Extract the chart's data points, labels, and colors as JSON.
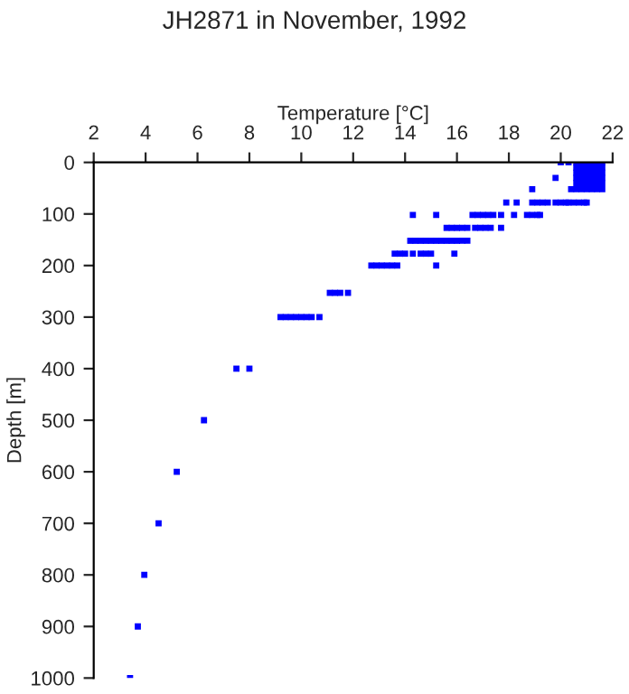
{
  "chart_data": {
    "type": "scatter",
    "title": "JH2871 in November, 1992",
    "xlabel": "Temperature [°C]",
    "ylabel": "Depth [m]",
    "xlim": [
      2,
      22
    ],
    "xticks": [
      2,
      4,
      6,
      8,
      10,
      12,
      14,
      16,
      18,
      20,
      22
    ],
    "ylim": [
      1000,
      0
    ],
    "yticks": [
      0,
      100,
      200,
      300,
      400,
      500,
      600,
      700,
      800,
      900,
      1000
    ],
    "marker": "square",
    "grid": false,
    "series": [
      {
        "color": "#0000ff",
        "x": [
          20.0,
          20.3,
          20.6,
          20.8,
          21.0,
          21.2,
          21.4,
          21.6,
          20.6,
          20.8,
          21.0,
          21.2,
          21.4,
          21.6,
          20.6,
          20.8,
          21.0,
          21.2,
          21.4,
          21.6,
          19.8,
          20.6,
          20.8,
          21.0,
          21.2,
          21.4,
          21.6,
          20.6,
          20.8,
          21.0,
          21.2,
          21.4,
          21.6,
          18.9,
          20.4,
          20.6,
          20.8,
          21.0,
          21.2,
          21.4,
          21.6,
          17.9,
          18.3,
          18.9,
          19.1,
          19.3,
          19.5,
          19.8,
          20.0,
          20.2,
          20.3,
          20.5,
          20.7,
          20.9,
          21.0,
          14.3,
          15.2,
          16.6,
          16.8,
          17.0,
          17.2,
          17.4,
          17.7,
          18.2,
          18.7,
          18.9,
          19.1,
          19.2,
          15.6,
          15.8,
          16.0,
          16.2,
          16.4,
          16.7,
          16.9,
          17.1,
          17.3,
          17.7,
          14.2,
          14.4,
          14.6,
          14.8,
          15.0,
          15.2,
          15.4,
          15.6,
          15.8,
          16.0,
          16.2,
          16.4,
          13.6,
          13.8,
          14.0,
          14.3,
          14.6,
          14.8,
          15.0,
          15.9,
          12.7,
          12.9,
          13.1,
          13.3,
          13.5,
          13.7,
          15.2,
          11.1,
          11.3,
          11.5,
          11.8,
          9.2,
          9.4,
          9.6,
          9.8,
          10.0,
          10.2,
          10.4,
          10.7,
          7.5,
          8.0,
          6.25,
          5.2,
          4.5,
          3.95,
          3.7,
          3.4
        ],
        "values": [
          0,
          0,
          0,
          0,
          0,
          0,
          0,
          0,
          10,
          10,
          10,
          10,
          10,
          10,
          20,
          20,
          20,
          20,
          20,
          20,
          30,
          30,
          30,
          30,
          30,
          30,
          30,
          40,
          40,
          40,
          40,
          40,
          40,
          52,
          52,
          52,
          52,
          52,
          52,
          52,
          52,
          78,
          78,
          78,
          78,
          78,
          78,
          78,
          78,
          78,
          78,
          78,
          78,
          78,
          78,
          102,
          102,
          102,
          102,
          102,
          102,
          102,
          102,
          102,
          102,
          102,
          102,
          102,
          127,
          127,
          127,
          127,
          127,
          127,
          127,
          127,
          127,
          127,
          152,
          152,
          152,
          152,
          152,
          152,
          152,
          152,
          152,
          152,
          152,
          152,
          177,
          177,
          177,
          177,
          177,
          177,
          177,
          177,
          200,
          200,
          200,
          200,
          200,
          200,
          200,
          253,
          253,
          253,
          253,
          300,
          300,
          300,
          300,
          300,
          300,
          300,
          300,
          400,
          400,
          500,
          600,
          700,
          800,
          900,
          1000
        ]
      }
    ]
  }
}
